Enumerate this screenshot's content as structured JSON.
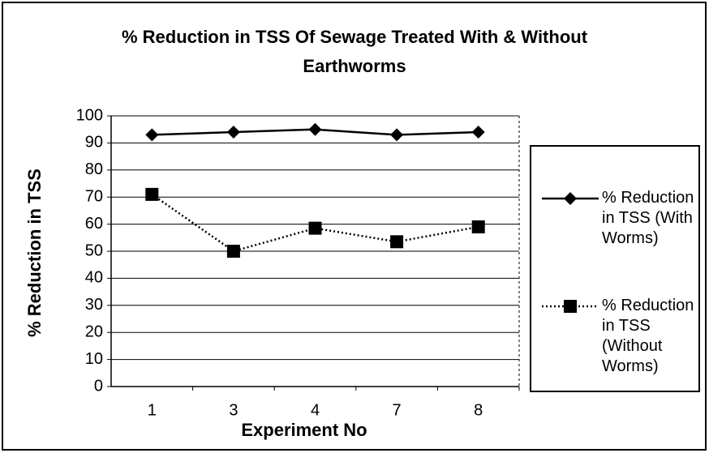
{
  "chart_data": {
    "type": "line",
    "title": "% Reduction in TSS Of Sewage Treated With & Without Earthworms",
    "x_label": "Experiment No",
    "y_label": "% Reduction  in  TSS",
    "categories": [
      "1",
      "3",
      "4",
      "7",
      "8"
    ],
    "series": [
      {
        "name": "% Reduction in TSS (With Worms)",
        "color": "#000000",
        "marker": "diamond",
        "line_style": "solid",
        "values": [
          93,
          94,
          95,
          93,
          94
        ]
      },
      {
        "name": "% Reduction in TSS (Without Worms)",
        "color": "#000000",
        "marker": "square",
        "line_style": "dotted",
        "values": [
          71,
          50,
          58.5,
          53.5,
          59
        ]
      }
    ],
    "ylim": [
      0,
      100
    ],
    "yticks": [
      0,
      10,
      20,
      30,
      40,
      50,
      60,
      70,
      80,
      90,
      100
    ],
    "grid": true,
    "legend": "right"
  }
}
